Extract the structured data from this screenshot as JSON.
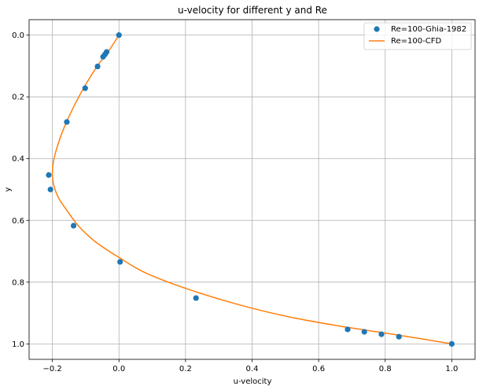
{
  "chart_data": {
    "type": "scatter",
    "title": "u-velocity for different y and Re",
    "xlabel": "u-velocity",
    "ylabel": "y",
    "xlim": [
      -0.27,
      1.07
    ],
    "ylim": [
      1.05,
      -0.05
    ],
    "y_axis_inverted": true,
    "grid": true,
    "legend_position": "top-right",
    "x_ticks": [
      -0.2,
      0.0,
      0.2,
      0.4,
      0.6,
      0.8,
      1.0
    ],
    "x_tick_labels": [
      "−0.2",
      "0.0",
      "0.2",
      "0.4",
      "0.6",
      "0.8",
      "1.0"
    ],
    "y_ticks": [
      0.0,
      0.2,
      0.4,
      0.6,
      0.8,
      1.0
    ],
    "y_tick_labels": [
      "0.0",
      "0.2",
      "0.4",
      "0.6",
      "0.8",
      "1.0"
    ],
    "series": [
      {
        "name": "Re=100-Ghia-1982",
        "kind": "markers",
        "color": "#1f77b4",
        "x": [
          0.0,
          -0.03717,
          -0.04192,
          -0.04775,
          -0.06434,
          -0.1015,
          -0.15662,
          -0.2109,
          -0.20581,
          -0.13641,
          0.00332,
          0.23151,
          0.68717,
          0.73722,
          0.78871,
          0.84123,
          1.0
        ],
        "y": [
          0.0,
          0.0547,
          0.0625,
          0.0703,
          0.1016,
          0.1719,
          0.2813,
          0.4531,
          0.5,
          0.6172,
          0.7344,
          0.8516,
          0.9531,
          0.9609,
          0.9688,
          0.9766,
          1.0
        ]
      },
      {
        "name": "Re=100-CFD",
        "kind": "line",
        "color": "#ff7f0e",
        "x": [
          0.0,
          -0.03,
          -0.065,
          -0.1,
          -0.135,
          -0.165,
          -0.185,
          -0.197,
          -0.2,
          -0.195,
          -0.18,
          -0.155,
          -0.12,
          -0.07,
          0.0,
          0.08,
          0.2,
          0.35,
          0.5,
          0.65,
          0.8,
          0.9,
          1.0
        ],
        "y": [
          0.0,
          0.05,
          0.1,
          0.16,
          0.23,
          0.3,
          0.36,
          0.41,
          0.45,
          0.49,
          0.53,
          0.57,
          0.62,
          0.67,
          0.72,
          0.77,
          0.82,
          0.87,
          0.91,
          0.94,
          0.965,
          0.982,
          1.0
        ]
      }
    ]
  }
}
